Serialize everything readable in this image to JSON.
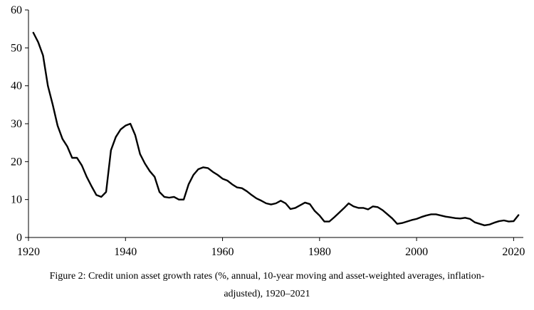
{
  "chart_data": {
    "type": "line",
    "xlim": [
      1920,
      2022
    ],
    "ylim": [
      0,
      60
    ],
    "x_ticks": [
      1920,
      1940,
      1960,
      1980,
      2000,
      2020
    ],
    "y_ticks": [
      0,
      10,
      20,
      30,
      40,
      50,
      60
    ],
    "x_tick_labels": [
      "1920",
      "1940",
      "1960",
      "1980",
      "2000",
      "2020"
    ],
    "y_tick_labels": [
      "0",
      "10",
      "20",
      "30",
      "40",
      "50",
      "60"
    ],
    "grid": false,
    "line_color": "#000000",
    "series": [
      {
        "x": [
          1921,
          1922,
          1923,
          1924,
          1925,
          1926,
          1927,
          1928,
          1929,
          1930,
          1931,
          1932,
          1933,
          1934,
          1935,
          1936,
          1937,
          1938,
          1939,
          1940,
          1941,
          1942,
          1943,
          1944,
          1945,
          1946,
          1947,
          1948,
          1949,
          1950,
          1951,
          1952,
          1953,
          1954,
          1955,
          1956,
          1957,
          1958,
          1959,
          1960,
          1961,
          1962,
          1963,
          1964,
          1965,
          1966,
          1967,
          1968,
          1969,
          1970,
          1971,
          1972,
          1973,
          1974,
          1975,
          1976,
          1977,
          1978,
          1979,
          1980,
          1981,
          1982,
          1983,
          1984,
          1985,
          1986,
          1987,
          1988,
          1989,
          1990,
          1991,
          1992,
          1993,
          1994,
          1995,
          1996,
          1997,
          1998,
          1999,
          2000,
          2001,
          2002,
          2003,
          2004,
          2005,
          2006,
          2007,
          2008,
          2009,
          2010,
          2011,
          2012,
          2013,
          2014,
          2015,
          2016,
          2017,
          2018,
          2019,
          2020,
          2021
        ],
        "y": [
          54,
          51.5,
          48,
          40,
          35,
          29.5,
          26,
          24,
          21,
          21,
          19,
          16,
          13.5,
          11.2,
          10.7,
          12,
          23,
          26.5,
          28.5,
          29.5,
          30,
          27,
          22,
          19.5,
          17.5,
          16,
          12,
          10.7,
          10.5,
          10.7,
          10,
          10,
          14,
          16.5,
          18,
          18.5,
          18.3,
          17.3,
          16.5,
          15.5,
          15,
          14,
          13.2,
          13,
          12.2,
          11.2,
          10.3,
          9.7,
          9,
          8.7,
          9,
          9.7,
          9,
          7.5,
          7.8,
          8.5,
          9.2,
          8.8,
          7,
          5.8,
          4.2,
          4.2,
          5.3,
          6.5,
          7.7,
          9,
          8.2,
          7.8,
          7.8,
          7.4,
          8.2,
          8,
          7.2,
          6.1,
          5,
          3.6,
          3.8,
          4.2,
          4.6,
          4.9,
          5.4,
          5.8,
          6.1,
          6.1,
          5.8,
          5.5,
          5.3,
          5.1,
          5,
          5.2,
          4.9,
          4,
          3.6,
          3.2,
          3.4,
          3.9,
          4.3,
          4.5,
          4.2,
          4.3,
          5.9
        ]
      }
    ]
  },
  "caption": {
    "line1": "Figure 2: Credit union asset growth rates (%, annual, 10-year moving and asset-weighted averages, inflation-",
    "line2": "adjusted), 1920–2021"
  }
}
